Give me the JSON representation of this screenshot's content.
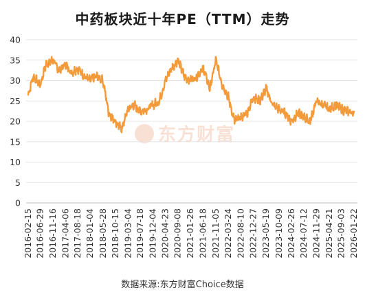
{
  "chart_data": {
    "type": "line",
    "title": "中药板块近十年PE（TTM）走势",
    "xlabel": "",
    "ylabel": "",
    "ylim": [
      0,
      40
    ],
    "yticks": [
      0,
      5,
      10,
      15,
      20,
      25,
      30,
      35,
      40
    ],
    "grid": true,
    "color": "#F39A3B",
    "x_tick_labels": [
      "2016-02-15",
      "2016-06-29",
      "2016-11-16",
      "2017-04-06",
      "2017-08-18",
      "2018-01-04",
      "2018-05-28",
      "2018-10-15",
      "2019-03-04",
      "2019-07-18",
      "2019-12-04",
      "2020-04-23",
      "2020-09-08",
      "2021-01-26",
      "2021-06-18",
      "2021-11-05",
      "2022-03-24",
      "2022-08-10",
      "2022-12-27",
      "2023-05-19",
      "2023-10-09",
      "2024-02-26",
      "2024-07-12",
      "2024-11-29",
      "2025-04-21",
      "2025-09-03",
      "2026-01-22"
    ],
    "series": [
      {
        "x": [
          "2016-02-15",
          "2016-04-10",
          "2016-06-29",
          "2016-09-01",
          "2016-11-16",
          "2017-01-20",
          "2017-04-06",
          "2017-06-10",
          "2017-08-18",
          "2017-11-01",
          "2018-01-04",
          "2018-03-15",
          "2018-05-28",
          "2018-08-01",
          "2018-10-15",
          "2018-12-20",
          "2019-03-04",
          "2019-05-10",
          "2019-07-18",
          "2019-10-01",
          "2019-12-04",
          "2020-02-15",
          "2020-04-23",
          "2020-06-30",
          "2020-09-08",
          "2020-11-20",
          "2021-01-26",
          "2021-04-05",
          "2021-06-18",
          "2021-09-01",
          "2021-11-05",
          "2022-01-15",
          "2022-03-24",
          "2022-06-01",
          "2022-08-10",
          "2022-10-20",
          "2022-12-27",
          "2023-03-10",
          "2023-05-19",
          "2023-08-01",
          "2023-10-09",
          "2023-12-20",
          "2024-02-26",
          "2024-05-05",
          "2024-07-12",
          "2024-09-20",
          "2024-11-29",
          "2025-02-10",
          "2025-04-21",
          "2025-07-01",
          "2025-09-03",
          "2025-11-10",
          "2026-01-22"
        ],
        "values": [
          26.5,
          31,
          29,
          34,
          35,
          32.5,
          34,
          32,
          33,
          31,
          30,
          31,
          30,
          22,
          20,
          18,
          23,
          24,
          22.5,
          23,
          24,
          25,
          30,
          33,
          35,
          31,
          30,
          31,
          33,
          28,
          35,
          29,
          26,
          20,
          21,
          22,
          26,
          25,
          28,
          24,
          23,
          22,
          20,
          22,
          21,
          20,
          25,
          24,
          23,
          24,
          23,
          22.5,
          22
        ]
      }
    ]
  },
  "footer": {
    "source": "数据来源:东方财富Choice数据"
  },
  "watermark": {
    "text": "东方财富",
    "icon": "eastmoney-logo-icon"
  }
}
